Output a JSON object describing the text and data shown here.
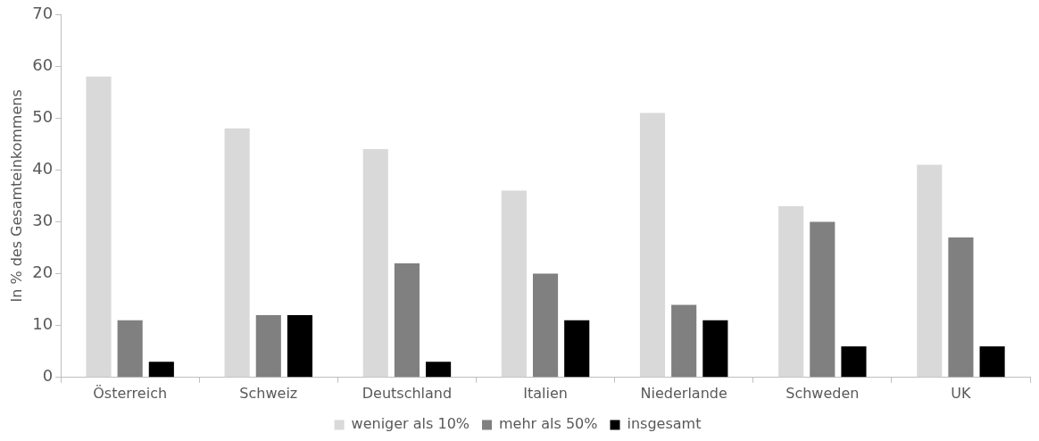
{
  "chart_data": {
    "type": "bar",
    "ylabel": "In % des Gesamteinkommens",
    "categories": [
      "Österreich",
      "Schweiz",
      "Deutschland",
      "Italien",
      "Niederlande",
      "Schweden",
      "UK"
    ],
    "series": [
      {
        "name": "weniger als 10%",
        "color": "#d9d9d9",
        "values": [
          58,
          48,
          44,
          36,
          51,
          33,
          41
        ]
      },
      {
        "name": "mehr als 50%",
        "color": "#808080",
        "values": [
          11,
          12,
          22,
          20,
          14,
          30,
          27
        ]
      },
      {
        "name": "insgesamt",
        "color": "#000000",
        "values": [
          3,
          12,
          3,
          11,
          11,
          6,
          6
        ]
      }
    ],
    "ylim": [
      0,
      70
    ],
    "yticks": [
      0,
      10,
      20,
      30,
      40,
      50,
      60,
      70
    ],
    "grid": false,
    "legend": "bottom"
  }
}
